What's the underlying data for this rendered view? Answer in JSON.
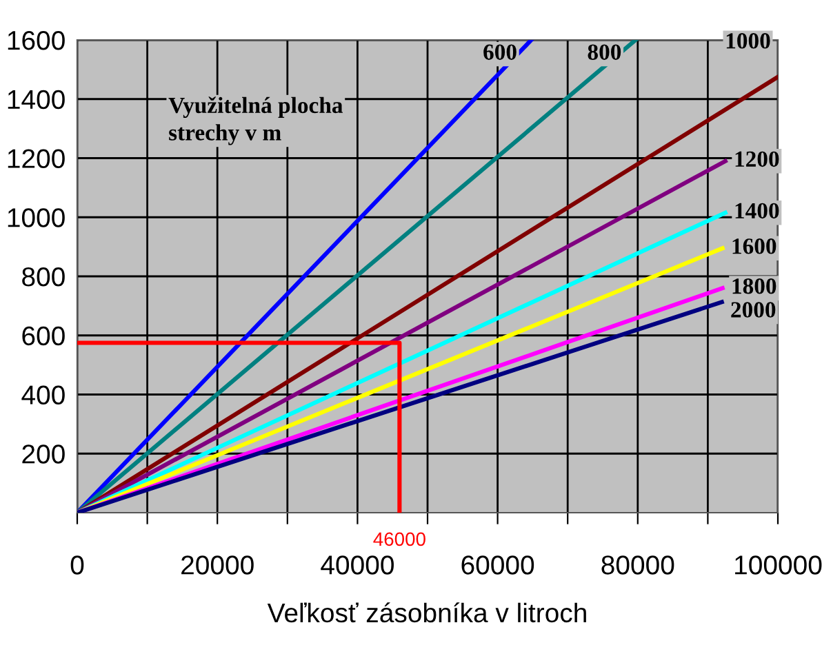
{
  "chart_data": {
    "type": "line",
    "xlabel": "Veľkosť zásobníka v litroch",
    "annotations": [
      "Využitelná plocha\nstrechy v m",
      {
        "text": "46000",
        "x": 46000,
        "y": 0
      }
    ],
    "series": [
      {
        "name": "600",
        "color": "#0000ff",
        "x": [
          0,
          64800
        ],
        "values": [
          0,
          1600
        ]
      },
      {
        "name": "800",
        "color": "#008080",
        "x": [
          0,
          79700
        ],
        "values": [
          0,
          1600
        ]
      },
      {
        "name": "1000",
        "color": "#800000",
        "x": [
          0,
          100000
        ],
        "values": [
          0,
          1475
        ]
      },
      {
        "name": "1200",
        "color": "#800080",
        "x": [
          0,
          92500
        ],
        "values": [
          0,
          1190
        ]
      },
      {
        "name": "1400",
        "color": "#00ffff",
        "x": [
          0,
          92500
        ],
        "values": [
          0,
          1015
        ]
      },
      {
        "name": "1600",
        "color": "#ffff00",
        "x": [
          0,
          92100
        ],
        "values": [
          0,
          895
        ]
      },
      {
        "name": "1800",
        "color": "#ff00ff",
        "x": [
          0,
          92100
        ],
        "values": [
          0,
          760
        ]
      },
      {
        "name": "2000",
        "color": "#000080",
        "x": [
          0,
          92000
        ],
        "values": [
          0,
          713
        ]
      },
      {
        "color": "#ff0000",
        "x": [
          0,
          46000,
          46000
        ],
        "values": [
          575,
          575,
          0
        ]
      }
    ],
    "xlim": [
      0,
      100000
    ],
    "ylim": [
      0,
      1600
    ],
    "xticks": [
      0,
      {
        "value": 10000,
        "label": null
      },
      20000,
      {
        "value": 30000,
        "label": null
      },
      40000,
      {
        "value": 50000,
        "label": null
      },
      60000,
      {
        "value": 70000,
        "label": null
      },
      80000,
      {
        "value": 90000,
        "label": null
      },
      100000
    ],
    "yticks": [
      200,
      400,
      600,
      800,
      1000,
      1200,
      1400,
      1600
    ],
    "grid": true,
    "legend": false
  }
}
